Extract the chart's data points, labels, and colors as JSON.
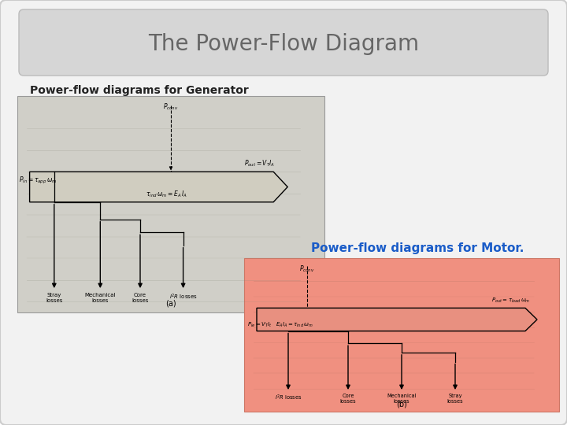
{
  "title": "The Power-Flow Diagram",
  "title_color": "#666666",
  "title_bg_color": "#d6d6d6",
  "bg_color": "#ffffff",
  "gen_label": "Power-flow diagrams for Generator",
  "gen_label_color": "#222222",
  "motor_label": "Power-flow diagrams for Motor.",
  "motor_label_color": "#1a5cc8",
  "gen_diagram_bg": "#d0cfc8",
  "motor_diagram_bg": "#f09080",
  "outer_bg": "#f0f0f0"
}
